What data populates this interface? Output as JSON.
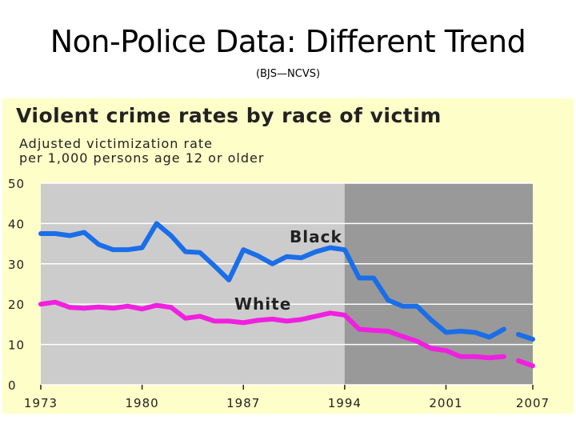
{
  "slide": {
    "title": "Non-Police Data: Different Trend",
    "subtitle": "(BJS—NCVS)"
  },
  "chart_data": {
    "type": "line",
    "title": "Violent crime rates by race of victim",
    "subtitle_line1": "Adjusted victimization rate",
    "subtitle_line2": "per 1,000 persons age 12 or older",
    "xlabel": "",
    "ylabel": "",
    "xlim": [
      1973,
      2007
    ],
    "ylim": [
      0,
      50
    ],
    "x_ticks": [
      "1973",
      "1980",
      "1987",
      "1994",
      "2001",
      "2007"
    ],
    "y_ticks": [
      "50",
      "40",
      "30",
      "20",
      "10",
      "0"
    ],
    "shaded_region_start": 1994,
    "series": [
      {
        "name": "Black",
        "color": "#1a6ee8",
        "x": [
          1973,
          1974,
          1975,
          1976,
          1977,
          1978,
          1979,
          1980,
          1981,
          1982,
          1983,
          1984,
          1985,
          1986,
          1987,
          1988,
          1989,
          1990,
          1991,
          1992,
          1993,
          1994,
          1995,
          1996,
          1997,
          1998,
          1999,
          2000,
          2001,
          2002,
          2003,
          2004,
          2005
        ],
        "values": [
          37.5,
          37.5,
          37,
          37.8,
          34.8,
          33.5,
          33.5,
          34,
          40,
          37,
          33,
          32.8,
          29.5,
          26,
          33.5,
          32,
          30,
          31.8,
          31.5,
          33,
          34,
          33.5,
          26.5,
          26.5,
          21,
          19.5,
          19.5,
          16,
          13,
          13.3,
          13,
          11.8,
          13.8
        ],
        "projected_x": [
          2006,
          2007
        ],
        "projected_values": [
          12.5,
          11.3
        ]
      },
      {
        "name": "White",
        "color": "#f020e0",
        "x": [
          1973,
          1974,
          1975,
          1976,
          1977,
          1978,
          1979,
          1980,
          1981,
          1982,
          1983,
          1984,
          1985,
          1986,
          1987,
          1988,
          1989,
          1990,
          1991,
          1992,
          1993,
          1994,
          1995,
          1996,
          1997,
          1998,
          1999,
          2000,
          2001,
          2002,
          2003,
          2004,
          2005
        ],
        "values": [
          20,
          20.5,
          19.2,
          19,
          19.3,
          19,
          19.5,
          18.8,
          19.7,
          19.2,
          16.5,
          17,
          15.8,
          15.8,
          15.4,
          16,
          16.3,
          15.8,
          16.2,
          17,
          17.8,
          17.3,
          13.8,
          13.5,
          13.3,
          12,
          10.8,
          9,
          8.5,
          7,
          7,
          6.7,
          7
        ],
        "projected_x": [
          2006,
          2007
        ],
        "projected_values": [
          6,
          4.7
        ]
      }
    ],
    "annotations": [
      {
        "text": "Black",
        "series": "Black"
      },
      {
        "text": "White",
        "series": "White"
      }
    ]
  }
}
